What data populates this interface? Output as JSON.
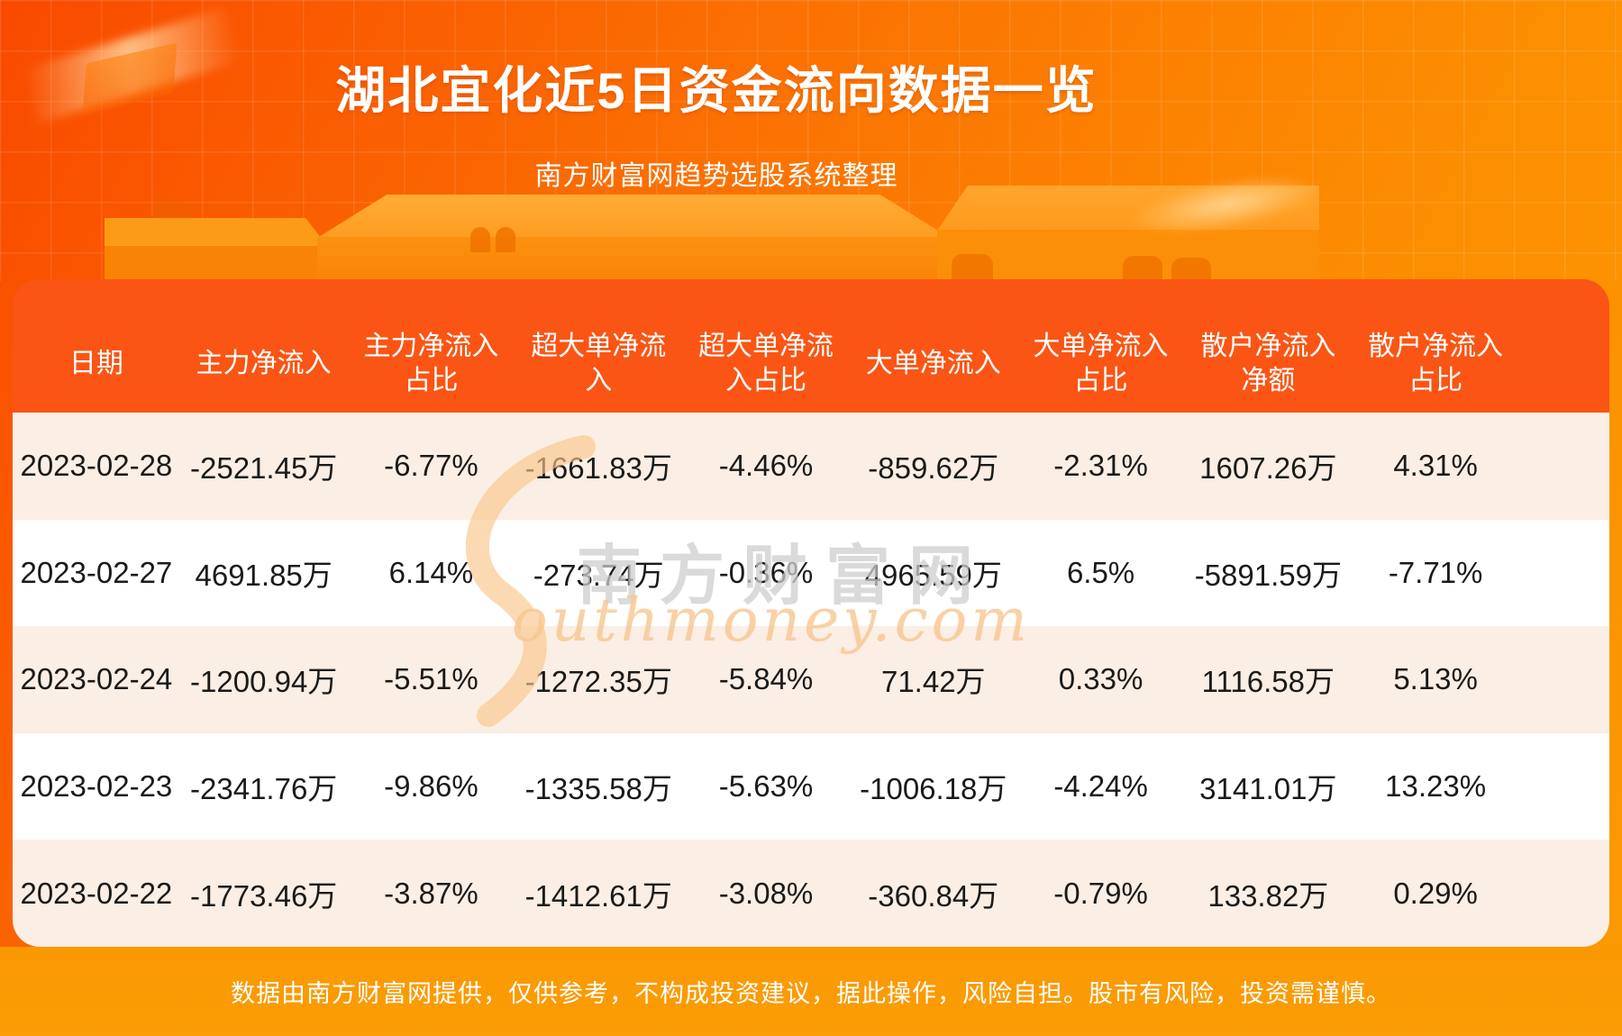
{
  "header": {
    "title": "湖北宜化近5日资金流向数据一览",
    "subtitle": "南方财富网趋势选股系统整理"
  },
  "watermark": {
    "cn": "南方财富网",
    "en": "outhmoney.com"
  },
  "footer": {
    "disclaimer": "数据由南方财富网提供，仅供参考，不构成投资建议，据此操作，风险自担。股市有风险，投资需谨慎。"
  },
  "colors": {
    "page_gradient_start": "#f94a00",
    "page_gradient_end": "#fb9a03",
    "header_band": "#fa5514",
    "row_cream": "#fbeee4",
    "row_white": "#ffffff",
    "footer_band": "#fa9802",
    "header_text": "#ffffff",
    "data_text": "#1a1a1a"
  },
  "chart_data": {
    "type": "table",
    "title": "湖北宜化近5日资金流向数据一览",
    "subtitle": "南方财富网趋势选股系统整理",
    "column_names": [
      "日期",
      "主力净流入",
      "主力净流入占比",
      "超大单净流入",
      "超大单净流入占比",
      "大单净流入",
      "大单净流入占比",
      "散户净流入净额",
      "散户净流入占比"
    ],
    "column_header_lines": [
      [
        "日期"
      ],
      [
        "主力净流入"
      ],
      [
        "主力净流入",
        "占比"
      ],
      [
        "超大单净流",
        "入"
      ],
      [
        "超大单净流",
        "入占比"
      ],
      [
        "大单净流入"
      ],
      [
        "大单净流入",
        "占比"
      ],
      [
        "散户净流入",
        "净额"
      ],
      [
        "散户净流入",
        "占比"
      ]
    ],
    "rows": [
      [
        "2023-02-28",
        "-2521.45万",
        "-6.77%",
        "-1661.83万",
        "-4.46%",
        "-859.62万",
        "-2.31%",
        "1607.26万",
        "4.31%"
      ],
      [
        "2023-02-27",
        "4691.85万",
        "6.14%",
        "-273.74万",
        "-0.36%",
        "4965.59万",
        "6.5%",
        "-5891.59万",
        "-7.71%"
      ],
      [
        "2023-02-24",
        "-1200.94万",
        "-5.51%",
        "-1272.35万",
        "-5.84%",
        "71.42万",
        "0.33%",
        "1116.58万",
        "5.13%"
      ],
      [
        "2023-02-23",
        "-2341.76万",
        "-9.86%",
        "-1335.58万",
        "-5.63%",
        "-1006.18万",
        "-4.24%",
        "3141.01万",
        "13.23%"
      ],
      [
        "2023-02-22",
        "-1773.46万",
        "-3.87%",
        "-1412.61万",
        "-3.08%",
        "-360.84万",
        "-0.79%",
        "133.82万",
        "0.29%"
      ]
    ]
  }
}
